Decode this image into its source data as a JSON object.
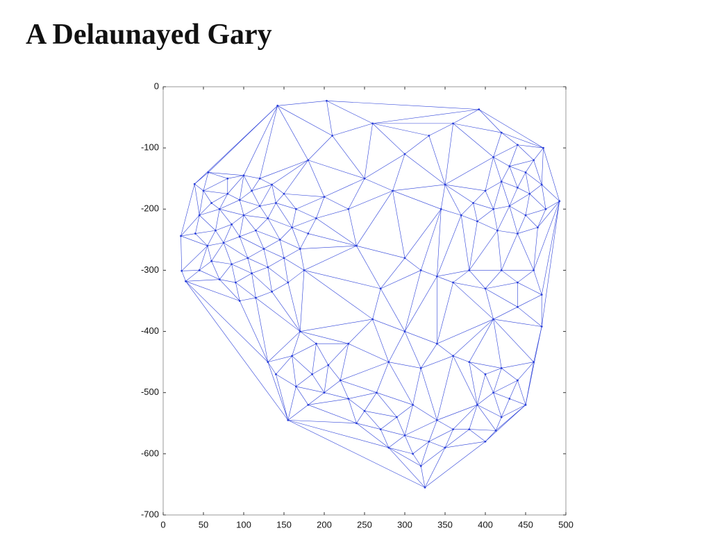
{
  "chart_data": {
    "type": "delaunay",
    "title": "A Delaunayed Gary",
    "color": "#2a3fd8",
    "x": [
      142,
      203,
      392,
      472,
      492,
      470,
      413,
      325,
      155,
      28,
      23,
      22,
      39,
      56,
      50,
      60,
      45,
      70,
      80,
      95,
      110,
      120,
      100,
      85,
      65,
      40,
      55,
      75,
      95,
      115,
      130,
      140,
      150,
      135,
      165,
      160,
      145,
      125,
      105,
      85,
      60,
      45,
      70,
      90,
      110,
      130,
      150,
      170,
      180,
      175,
      155,
      135,
      115,
      95,
      120,
      100,
      80,
      190,
      200,
      180,
      210,
      260,
      300,
      330,
      350,
      250,
      230,
      285,
      360,
      420,
      440,
      460,
      450,
      430,
      410,
      470,
      455,
      440,
      420,
      400,
      385,
      410,
      430,
      450,
      475,
      465,
      440,
      415,
      390,
      370,
      345,
      320,
      340,
      360,
      380,
      400,
      420,
      440,
      460,
      470,
      440,
      410,
      300,
      270,
      240,
      260,
      230,
      300,
      340,
      360,
      320,
      280,
      170,
      190,
      160,
      130,
      140,
      165,
      185,
      205,
      220,
      200,
      180,
      230,
      250,
      265,
      240,
      270,
      290,
      300,
      280,
      310,
      330,
      320,
      350,
      360,
      340,
      310,
      380,
      400,
      420,
      440,
      460,
      430,
      410,
      390,
      420,
      450,
      380,
      400
    ],
    "values": [
      -31,
      -23,
      -37,
      -100,
      -187,
      -392,
      -562,
      -655,
      -545,
      -318,
      -301,
      -244,
      -159,
      -140,
      -170,
      -190,
      -210,
      -200,
      -175,
      -185,
      -170,
      -195,
      -210,
      -225,
      -235,
      -240,
      -260,
      -255,
      -245,
      -235,
      -215,
      -190,
      -175,
      -160,
      -200,
      -230,
      -250,
      -265,
      -280,
      -290,
      -285,
      -300,
      -315,
      -320,
      -305,
      -295,
      -280,
      -265,
      -240,
      -300,
      -320,
      -335,
      -345,
      -350,
      -150,
      -145,
      -150,
      -215,
      -180,
      -120,
      -80,
      -60,
      -110,
      -80,
      -160,
      -150,
      -200,
      -170,
      -60,
      -75,
      -95,
      -120,
      -140,
      -130,
      -115,
      -160,
      -175,
      -165,
      -155,
      -170,
      -190,
      -200,
      -195,
      -210,
      -200,
      -230,
      -240,
      -235,
      -220,
      -210,
      -200,
      -300,
      -310,
      -320,
      -300,
      -330,
      -300,
      -320,
      -300,
      -340,
      -360,
      -380,
      -280,
      -330,
      -260,
      -380,
      -420,
      -400,
      -420,
      -440,
      -460,
      -450,
      -400,
      -420,
      -440,
      -450,
      -470,
      -490,
      -470,
      -455,
      -480,
      -500,
      -520,
      -510,
      -530,
      -500,
      -550,
      -560,
      -540,
      -570,
      -590,
      -600,
      -580,
      -620,
      -590,
      -560,
      -545,
      -520,
      -450,
      -470,
      -460,
      -480,
      -450,
      -510,
      -500,
      -520,
      -540,
      -520,
      -560,
      -580
    ],
    "xlim": [
      0,
      500
    ],
    "ylim": [
      -700,
      0
    ],
    "xticks": [
      0,
      50,
      100,
      150,
      200,
      250,
      300,
      350,
      400,
      450,
      500
    ],
    "yticks": [
      0,
      -100,
      -200,
      -300,
      -400,
      -500,
      -600,
      -700
    ]
  }
}
